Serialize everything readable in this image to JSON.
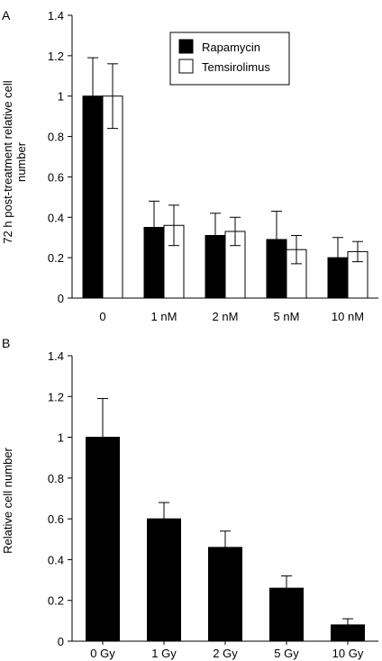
{
  "chart_data": [
    {
      "panel_label": "A",
      "type": "bar",
      "categories": [
        "0",
        "1 nM",
        "2 nM",
        "5 nM",
        "10 nM"
      ],
      "series": [
        {
          "name": "Rapamycin",
          "values": [
            1.0,
            0.35,
            0.31,
            0.29,
            0.2
          ],
          "errors": [
            0.19,
            0.13,
            0.11,
            0.14,
            0.1
          ],
          "color": "#000000"
        },
        {
          "name": "Temsirolimus",
          "values": [
            1.0,
            0.36,
            0.33,
            0.24,
            0.23
          ],
          "errors": [
            0.16,
            0.1,
            0.07,
            0.07,
            0.05
          ],
          "color": "#ffffff"
        }
      ],
      "ylabel_line1": "72 h post-treatment relative cell",
      "ylabel_line2": "number",
      "xlabel": "",
      "ylim": [
        0,
        1.4
      ],
      "yticks": [
        "0",
        "0.2",
        "0.4",
        "0.6",
        "0.8",
        "1",
        "1.2",
        "1.4"
      ],
      "legend_position": "top-right",
      "grid": false
    },
    {
      "panel_label": "B",
      "type": "bar",
      "categories": [
        "0 Gy",
        "1 Gy",
        "2 Gy",
        "5 Gy",
        "10 Gy"
      ],
      "series": [
        {
          "values": [
            1.0,
            0.6,
            0.46,
            0.26,
            0.08
          ],
          "errors": [
            0.19,
            0.08,
            0.08,
            0.06,
            0.03
          ],
          "color": "#000000"
        }
      ],
      "ylabel": "Relative cell number",
      "xlabel": "",
      "ylim": [
        0,
        1.4
      ],
      "yticks": [
        "0",
        "0.2",
        "0.4",
        "0.6",
        "0.8",
        "1",
        "1.2",
        "1.4"
      ],
      "grid": false
    }
  ]
}
